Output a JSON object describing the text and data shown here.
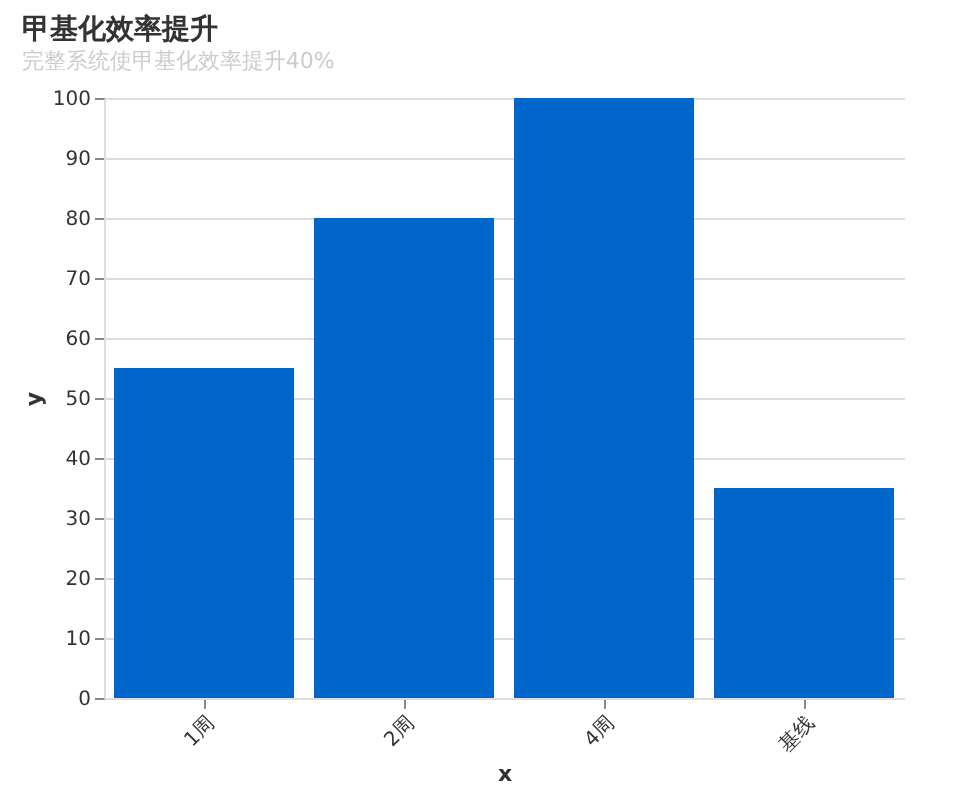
{
  "chart_data": {
    "type": "bar",
    "title": "甲基化效率提升",
    "subtitle": "完整系统使甲基化效率提升40%",
    "xlabel": "x",
    "ylabel": "y",
    "categories": [
      "1周",
      "2周",
      "4周",
      "基线"
    ],
    "values": [
      55,
      80,
      100,
      35
    ],
    "color": "#0066cc",
    "ylim": [
      0,
      100
    ],
    "yticks": [
      0,
      10,
      20,
      30,
      40,
      50,
      60,
      70,
      80,
      90,
      100
    ],
    "grid": "y"
  }
}
